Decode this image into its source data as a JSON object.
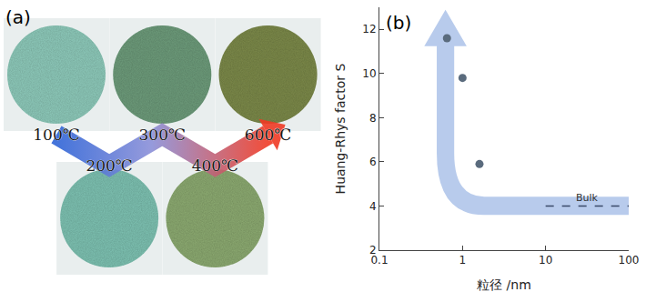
{
  "chart_data": [
    {
      "type": "swatch",
      "title": "(a)",
      "categories": [
        "100℃",
        "200℃",
        "300℃",
        "400℃",
        "600℃"
      ],
      "colors": [
        "#8fcbbb",
        "#7fc3b3",
        "#6e9c7c",
        "#8dab72",
        "#7d8a4c"
      ]
    },
    {
      "type": "scatter",
      "title": "(b)",
      "x_label": "粒径 /nm",
      "y_label": "Huang-Rhys factor S",
      "log": "x",
      "grid": false,
      "xlim": [
        0.1,
        100
      ],
      "xticks": [
        0.1,
        1,
        10,
        100
      ],
      "ylim": [
        2,
        13
      ],
      "yticks": [
        2,
        4,
        6,
        8,
        10,
        12
      ],
      "series": [
        {
          "type": "scatter",
          "x": [
            0.65,
            1.0,
            1.6
          ],
          "values": [
            11.6,
            9.8,
            5.9
          ],
          "color": "#5a6b7d",
          "marker": "circle"
        },
        {
          "name": "Bulk",
          "type": "line",
          "x": [
            10,
            100
          ],
          "values": [
            4,
            4
          ],
          "color": "#3a4a6a",
          "line_style": "dash"
        }
      ]
    }
  ]
}
